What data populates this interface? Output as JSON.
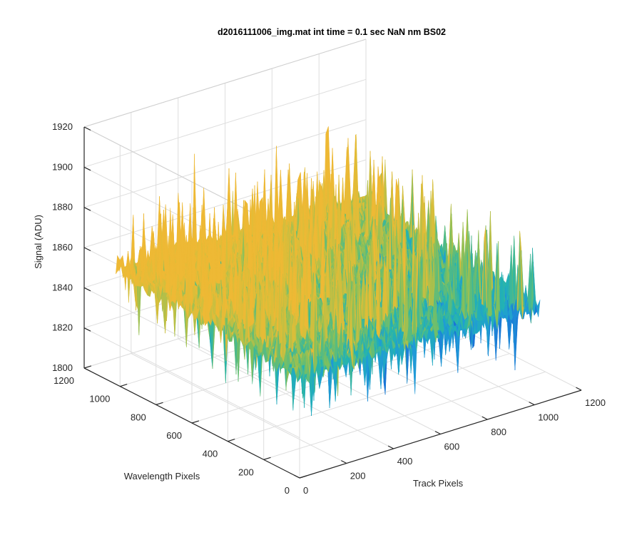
{
  "chart_data": {
    "type": "surface3d",
    "title": "d2016111006_img.mat int time = 0.1 sec  NaN nm BS02",
    "xlabel": "Track Pixels",
    "ylabel": "Wavelength Pixels",
    "zlabel": "Signal (ADU)",
    "xlim": [
      0,
      1200
    ],
    "ylim": [
      0,
      1200
    ],
    "zlim": [
      1800,
      1920
    ],
    "xticks": [
      "0",
      "200",
      "400",
      "600",
      "800",
      "1000",
      "1200"
    ],
    "yticks": [
      "0",
      "200",
      "400",
      "600",
      "800",
      "1000",
      "1200"
    ],
    "zticks": [
      "1800",
      "1820",
      "1840",
      "1860",
      "1880",
      "1900",
      "1920"
    ],
    "grid": true,
    "colormap": [
      "#1a6fd6",
      "#1f9ad8",
      "#23b4b0",
      "#7cc060",
      "#d8bf3a",
      "#f0b834"
    ],
    "surface": {
      "x_range": [
        0,
        1024
      ],
      "y_range": [
        0,
        1024
      ],
      "mean_signal": 1852,
      "baseline_noise_adu": 6,
      "spike_peaks_adu": [
        1905,
        1906,
        1900
      ]
    }
  }
}
